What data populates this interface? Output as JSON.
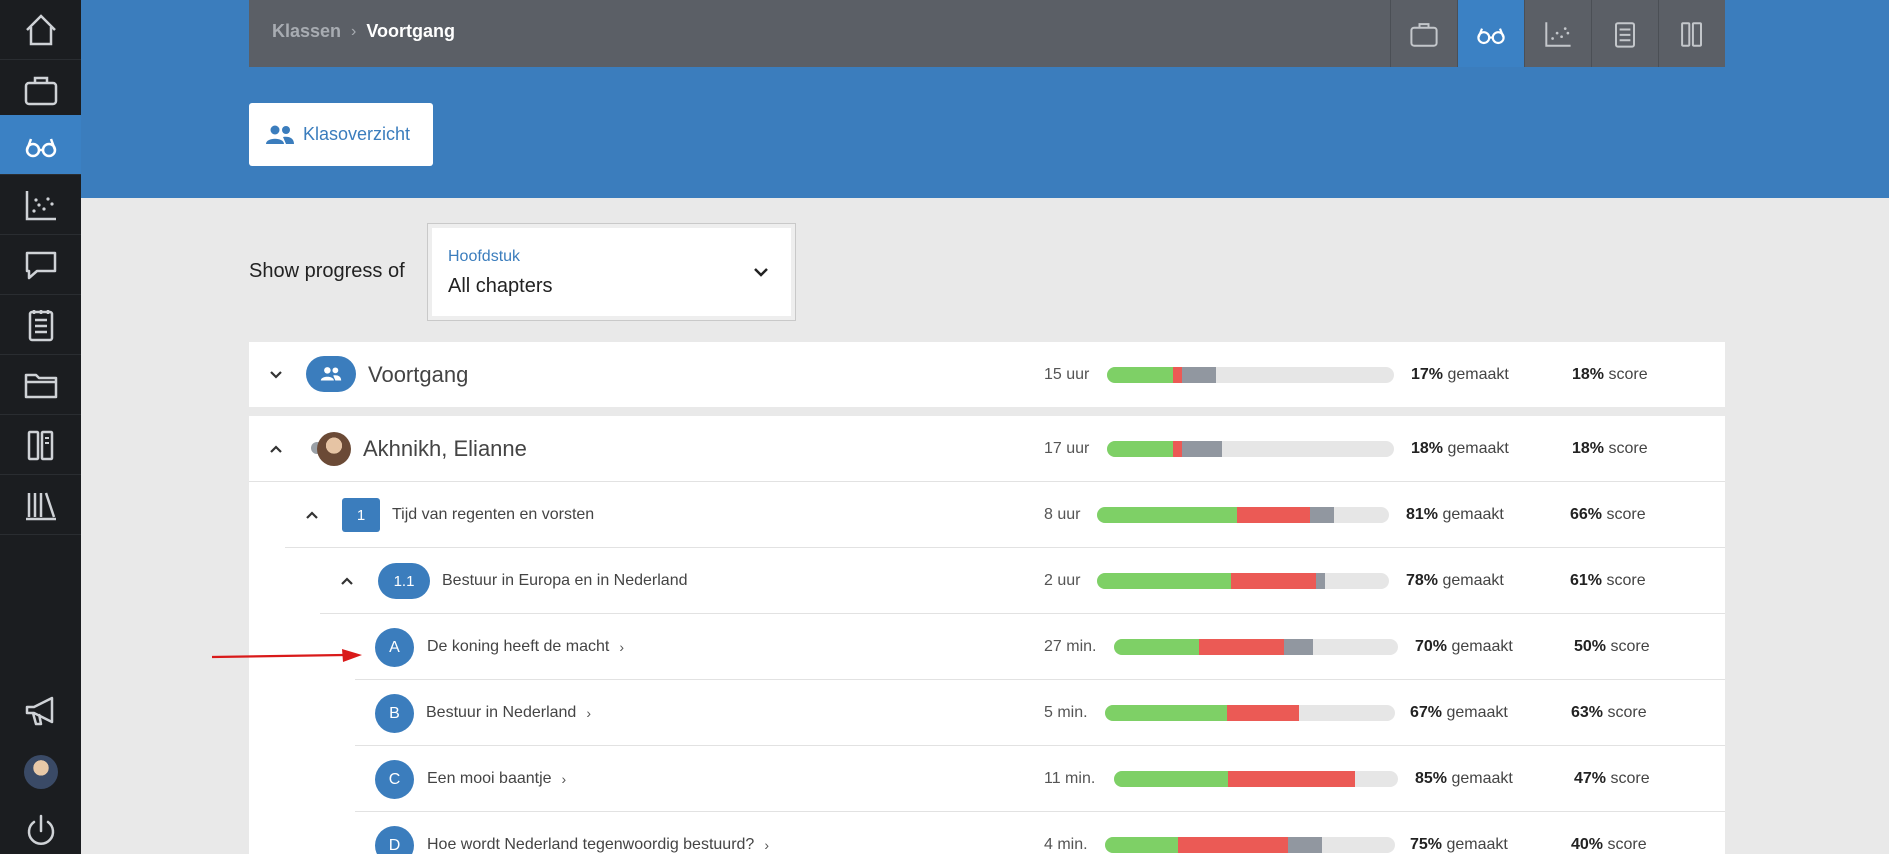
{
  "colors": {
    "accent": "#3b7dbd",
    "done": "#7ed066",
    "wrong": "#eb5a55",
    "partial": "#9197a0",
    "empty": "#e6e6e6"
  },
  "sidebar": {
    "items": [
      {
        "icon": "home-icon"
      },
      {
        "icon": "briefcase-icon"
      },
      {
        "icon": "glasses-icon",
        "active": true
      },
      {
        "icon": "scatter-chart-icon"
      },
      {
        "icon": "chat-icon"
      },
      {
        "icon": "notepad-icon"
      },
      {
        "icon": "folder-icon"
      },
      {
        "icon": "book-stack-icon"
      },
      {
        "icon": "library-icon"
      },
      {
        "icon": "megaphone-icon"
      },
      {
        "icon": "user-avatar"
      },
      {
        "icon": "power-icon"
      }
    ]
  },
  "topbar": {
    "breadcrumb": {
      "parent": "Klassen",
      "current": "Voortgang"
    },
    "icons": [
      "briefcase-icon",
      "glasses-icon",
      "scatter-chart-icon",
      "notepad-icon",
      "book-stack-icon"
    ]
  },
  "klasoverzicht": {
    "label": "Klasoverzicht"
  },
  "filter": {
    "label": "Show progress of",
    "select_label": "Hoofdstuk",
    "select_value": "All chapters"
  },
  "suffix": {
    "made": "gemaakt",
    "score": "score"
  },
  "rows": {
    "voortgang": {
      "title": "Voortgang",
      "time": "15 uur",
      "made": "17%",
      "score": "18%",
      "progress": {
        "done": 0.23,
        "wrong": 0.03,
        "partial": 0.12
      }
    },
    "student": {
      "name": "Akhnikh, Elianne",
      "time": "17 uur",
      "made": "18%",
      "score": "18%",
      "progress": {
        "done": 0.23,
        "wrong": 0.03,
        "partial": 0.14
      }
    },
    "chapter": {
      "number": "1",
      "title": "Tijd van regenten en vorsten",
      "time": "8 uur",
      "made": "81%",
      "score": "66%",
      "progress": {
        "done": 0.48,
        "wrong": 0.25,
        "partial": 0.08
      }
    },
    "section": {
      "number": "1.1",
      "title": "Bestuur in Europa en in Nederland",
      "time": "2 uur",
      "made": "78%",
      "score": "61%",
      "progress": {
        "done": 0.46,
        "wrong": 0.29,
        "partial": 0.03
      }
    },
    "lessons": [
      {
        "letter": "A",
        "title": "De koning heeft de macht",
        "time": "27 min.",
        "made": "70%",
        "score": "50%",
        "progress": {
          "done": 0.3,
          "wrong": 0.3,
          "partial": 0.1
        }
      },
      {
        "letter": "B",
        "title": "Bestuur in Nederland",
        "time": "5 min.",
        "made": "67%",
        "score": "63%",
        "progress": {
          "done": 0.42,
          "wrong": 0.25,
          "partial": 0.0
        }
      },
      {
        "letter": "C",
        "title": "Een mooi baantje",
        "time": "11 min.",
        "made": "85%",
        "score": "47%",
        "progress": {
          "done": 0.4,
          "wrong": 0.45,
          "partial": 0.0
        }
      },
      {
        "letter": "D",
        "title": "Hoe wordt Nederland tegenwoordig bestuurd?",
        "time": "4 min.",
        "made": "75%",
        "score": "40%",
        "progress": {
          "done": 0.25,
          "wrong": 0.38,
          "partial": 0.12
        }
      }
    ]
  }
}
